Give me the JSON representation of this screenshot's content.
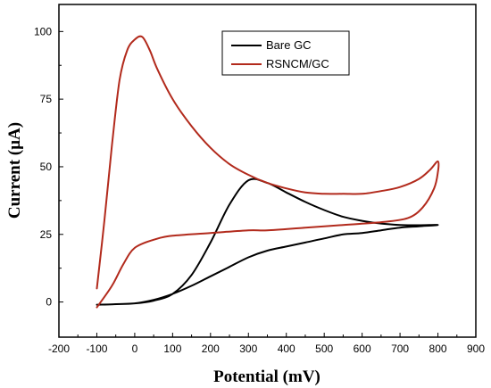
{
  "chart_data": {
    "type": "line",
    "xlabel": "Potential (mV)",
    "ylabel": "Current (µA)",
    "xlim": [
      -200,
      900
    ],
    "ylim": [
      -13,
      110
    ],
    "x_ticks": [
      -200,
      -100,
      0,
      100,
      200,
      300,
      400,
      500,
      600,
      700,
      800,
      900
    ],
    "y_ticks": [
      0,
      25,
      50,
      75,
      100
    ],
    "grid": false,
    "legend_position": "top-right",
    "series": [
      {
        "name": "Bare GC",
        "color": "#000000",
        "points": [
          [
            -100,
            -1
          ],
          [
            0,
            -0.5
          ],
          [
            50,
            0.5
          ],
          [
            100,
            3
          ],
          [
            150,
            10
          ],
          [
            200,
            22
          ],
          [
            250,
            36
          ],
          [
            300,
            45
          ],
          [
            350,
            44
          ],
          [
            400,
            40.5
          ],
          [
            450,
            37
          ],
          [
            500,
            34
          ],
          [
            550,
            31.5
          ],
          [
            600,
            30
          ],
          [
            650,
            29
          ],
          [
            700,
            28.5
          ],
          [
            750,
            28.4
          ],
          [
            800,
            28.5
          ],
          [
            750,
            28
          ],
          [
            700,
            27.5
          ],
          [
            650,
            26.5
          ],
          [
            600,
            25.5
          ],
          [
            550,
            25
          ],
          [
            500,
            23.5
          ],
          [
            450,
            22
          ],
          [
            400,
            20.5
          ],
          [
            350,
            19
          ],
          [
            300,
            16.5
          ],
          [
            250,
            13
          ],
          [
            200,
            9.5
          ],
          [
            150,
            6
          ],
          [
            100,
            3
          ],
          [
            50,
            0.8
          ],
          [
            0,
            -0.5
          ],
          [
            -50,
            -0.8
          ],
          [
            -100,
            -1
          ]
        ]
      },
      {
        "name": "RSNCM/GC",
        "color": "#b22a1c",
        "points": [
          [
            -100,
            5
          ],
          [
            -80,
            30
          ],
          [
            -60,
            58
          ],
          [
            -40,
            82
          ],
          [
            -20,
            93
          ],
          [
            0,
            97
          ],
          [
            20,
            98
          ],
          [
            40,
            93
          ],
          [
            60,
            86
          ],
          [
            100,
            75
          ],
          [
            150,
            65
          ],
          [
            200,
            57
          ],
          [
            250,
            51
          ],
          [
            300,
            47
          ],
          [
            350,
            44
          ],
          [
            400,
            42
          ],
          [
            450,
            40.5
          ],
          [
            500,
            40
          ],
          [
            550,
            40
          ],
          [
            600,
            40
          ],
          [
            650,
            41
          ],
          [
            700,
            42.5
          ],
          [
            750,
            45.5
          ],
          [
            780,
            49
          ],
          [
            800,
            52
          ],
          [
            800,
            48
          ],
          [
            790,
            42
          ],
          [
            760,
            35
          ],
          [
            720,
            31
          ],
          [
            650,
            29.5
          ],
          [
            550,
            28.5
          ],
          [
            450,
            27.5
          ],
          [
            350,
            26.5
          ],
          [
            300,
            26.5
          ],
          [
            200,
            25.5
          ],
          [
            100,
            24.5
          ],
          [
            50,
            23
          ],
          [
            0,
            20
          ],
          [
            -30,
            14
          ],
          [
            -60,
            6
          ],
          [
            -100,
            -2
          ]
        ]
      }
    ]
  }
}
